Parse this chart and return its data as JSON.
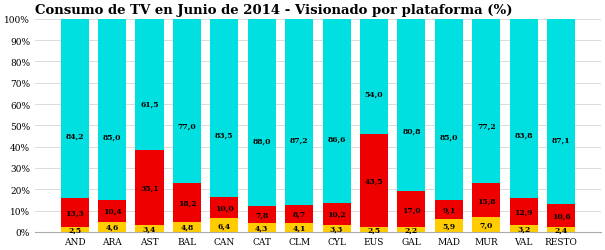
{
  "title": "Consumo de TV en Junio de 2014 - Visionado por plataforma (%)",
  "categories": [
    "AND",
    "ARA",
    "AST",
    "BAL",
    "CAN",
    "CAT",
    "CLM",
    "CYL",
    "EUS",
    "GAL",
    "MAD",
    "MUR",
    "VAL",
    "RESTO"
  ],
  "cyan_values": [
    84.2,
    85.0,
    61.5,
    77.0,
    83.5,
    88.0,
    87.2,
    86.6,
    54.0,
    80.8,
    85.0,
    77.2,
    83.8,
    87.1
  ],
  "red_values": [
    13.3,
    10.4,
    35.1,
    18.2,
    10.0,
    7.8,
    8.7,
    10.2,
    43.5,
    17.0,
    9.1,
    15.8,
    12.9,
    10.6
  ],
  "yellow_values": [
    2.5,
    4.6,
    3.4,
    4.8,
    6.4,
    4.3,
    4.1,
    3.3,
    2.5,
    2.2,
    5.9,
    7.0,
    3.2,
    2.4
  ],
  "cyan_color": "#00e0e0",
  "red_color": "#ee0000",
  "yellow_color": "#ffcc00",
  "bg_color": "#ffffff",
  "title_fontsize": 9.5,
  "label_fontsize": 5.5,
  "tick_fontsize": 6.5,
  "ylim": [
    0,
    100
  ]
}
